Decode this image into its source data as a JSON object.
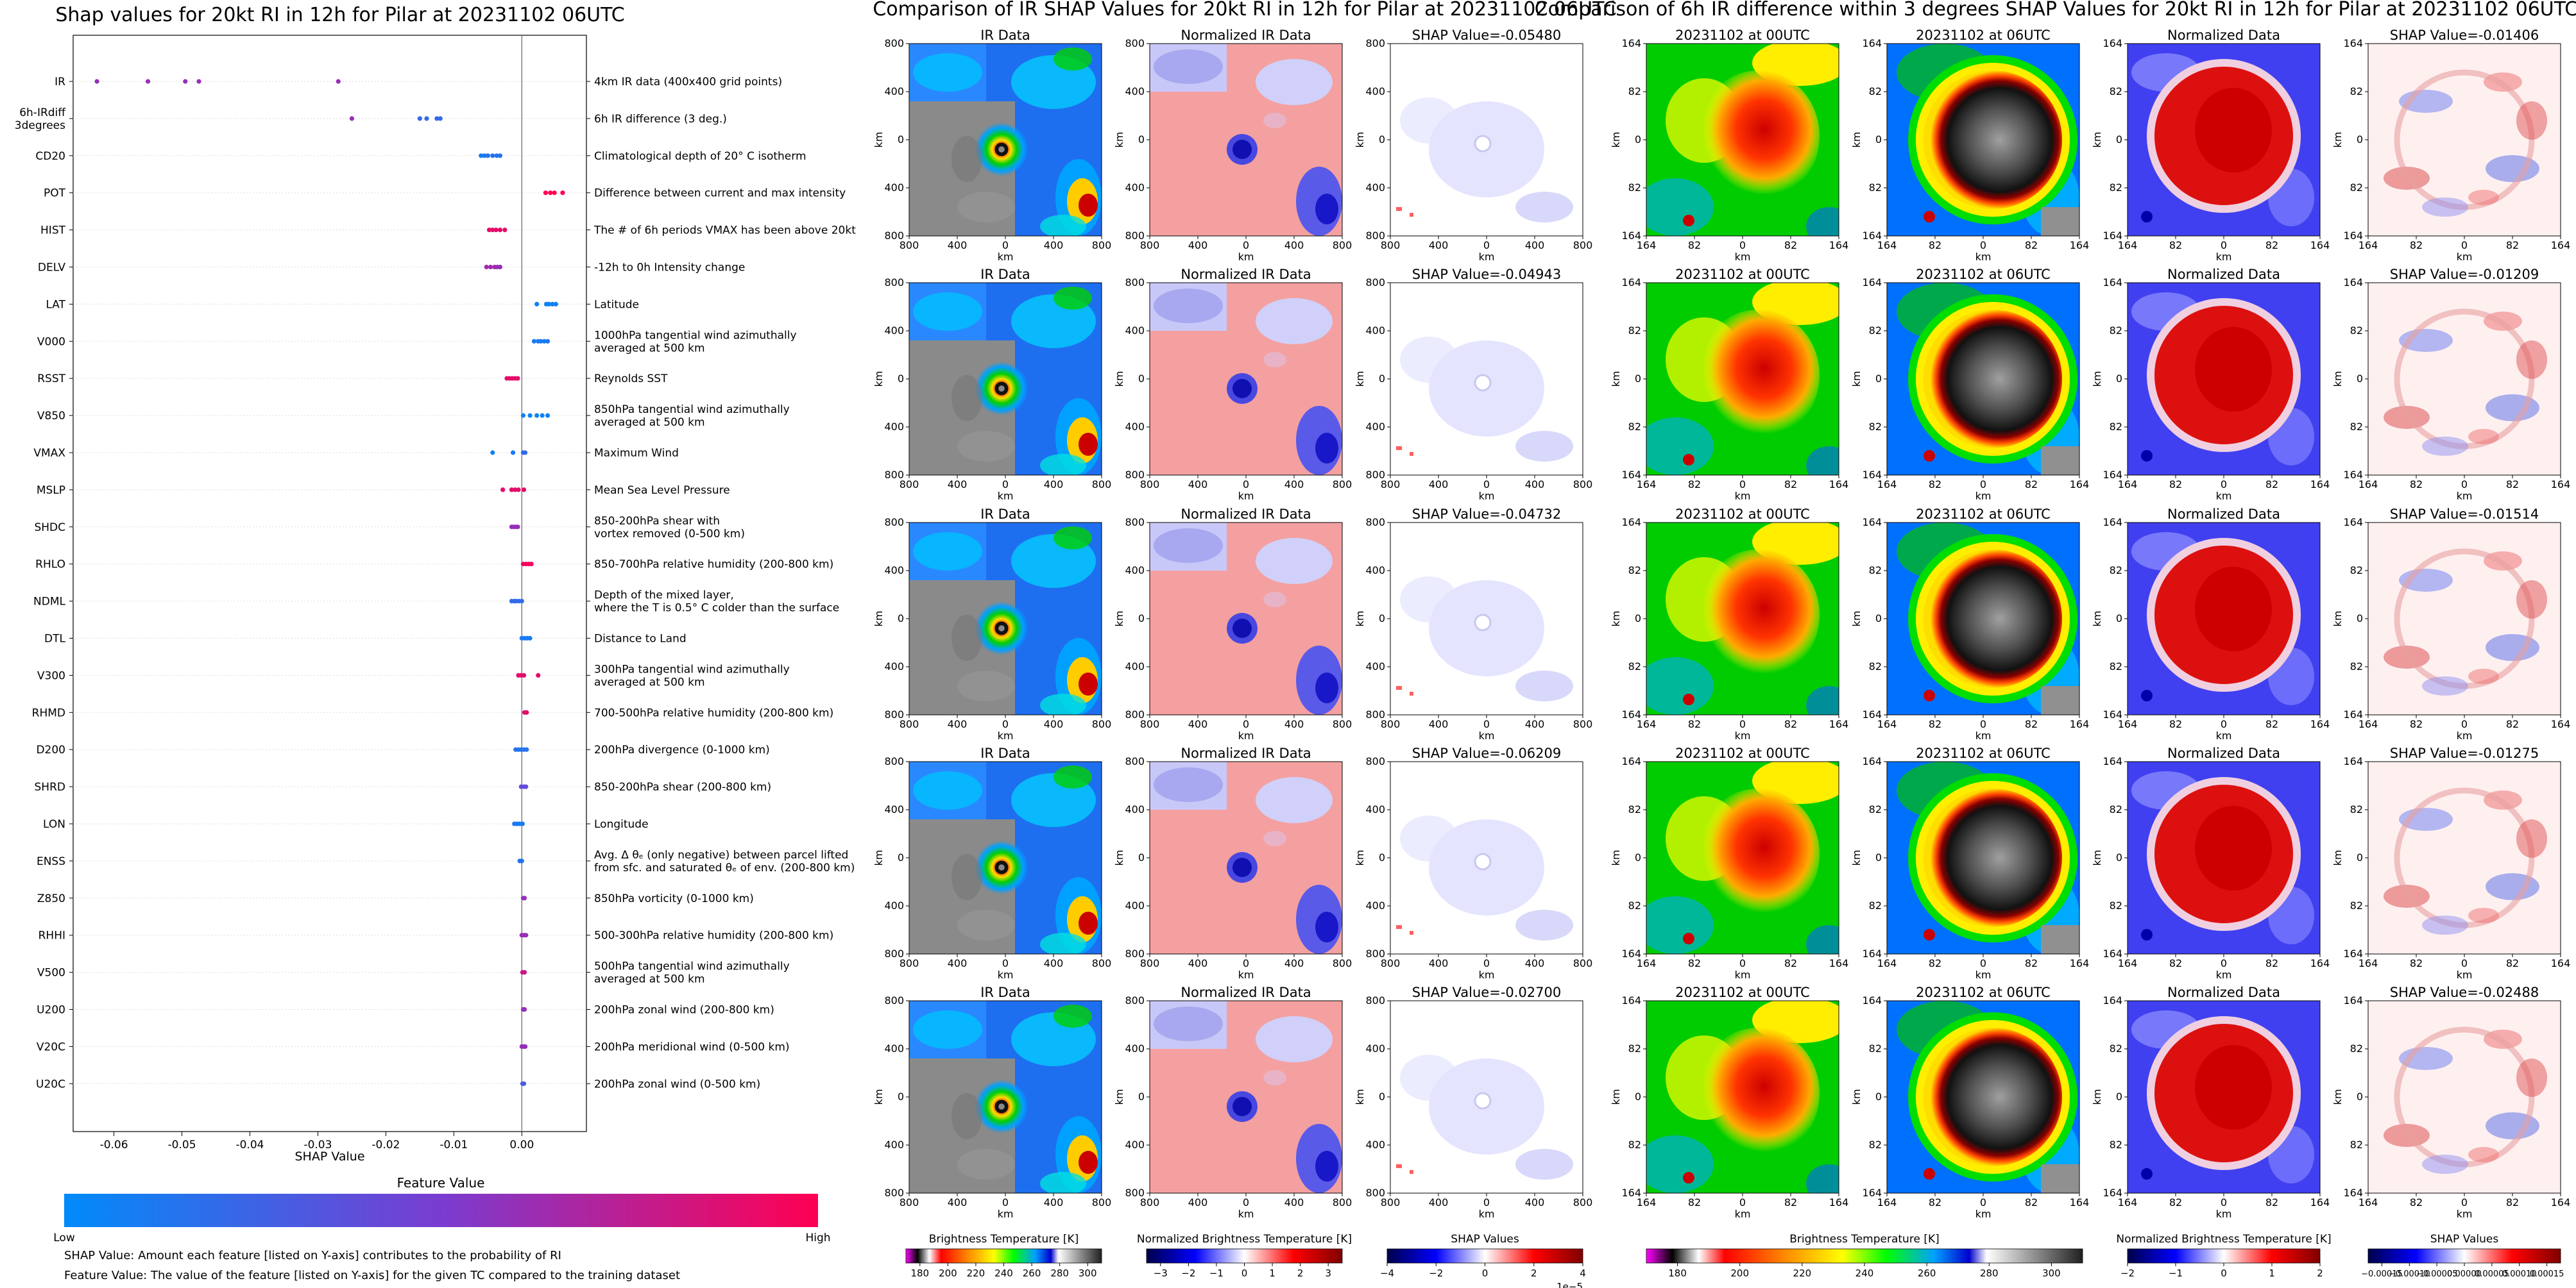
{
  "titles": {
    "left": "Shap values for 20kt RI in 12h for Pilar at 20231102 06UTC",
    "middle": "Comparison of IR SHAP Values for 20kt RI in 12h for Pilar at 20231102 06UTC",
    "right": "Comparison of 6h IR difference within 3 degrees SHAP Values for 20kt RI in 12h for Pilar at 20231102 06UTC"
  },
  "beeswarm": {
    "xlabel": "SHAP Value",
    "xticks": [
      "-0.06",
      "-0.05",
      "-0.04",
      "-0.03",
      "-0.02",
      "-0.01",
      "0.00"
    ],
    "xlim": [
      -0.066,
      0.0095
    ],
    "colorbar": {
      "title": "Feature Value",
      "low": "Low",
      "high": "High"
    },
    "notes": [
      "SHAP Value: Amount each feature [listed on Y-axis] contributes to the probability of RI",
      "Feature Value: The value of the feature [listed on Y-axis] for the given TC compared to the training dataset"
    ]
  },
  "chart_data": [
    {
      "type": "scatter",
      "title": "Shap values for 20kt RI in 12h for Pilar at 20231102 06UTC",
      "xlabel": "SHAP Value",
      "xlim": [
        -0.066,
        0.0095
      ],
      "features": [
        {
          "name": "IR",
          "desc": "4km IR data (400x400 grid points)",
          "points": [
            [
              -0.0625,
              0.6
            ],
            [
              -0.055,
              0.6
            ],
            [
              -0.0495,
              0.6
            ],
            [
              -0.0475,
              0.6
            ],
            [
              -0.027,
              0.6
            ]
          ]
        },
        {
          "name": "6h-IRdiff\n3degrees",
          "desc": "6h IR difference (3 deg.)",
          "points": [
            [
              -0.025,
              0.6
            ],
            [
              -0.015,
              0.2
            ],
            [
              -0.014,
              0.2
            ],
            [
              -0.0125,
              0.2
            ],
            [
              -0.012,
              0.2
            ]
          ]
        },
        {
          "name": "CD20",
          "desc": "Climatological depth of 20° C isotherm",
          "points": [
            [
              -0.006,
              0.1
            ],
            [
              -0.0055,
              0.1
            ],
            [
              -0.005,
              0.15
            ],
            [
              -0.0043,
              0.15
            ],
            [
              -0.0037,
              0.15
            ],
            [
              -0.0032,
              0.15
            ]
          ]
        },
        {
          "name": "POT",
          "desc": "Difference between current and max intensity",
          "points": [
            [
              0.0035,
              1
            ],
            [
              0.0042,
              1
            ],
            [
              0.0048,
              1
            ],
            [
              0.006,
              1
            ]
          ]
        },
        {
          "name": "HIST",
          "desc": "The # of 6h periods VMAX has been above 20kt",
          "points": [
            [
              -0.0048,
              0.9
            ],
            [
              -0.0043,
              0.9
            ],
            [
              -0.0038,
              0.9
            ],
            [
              -0.0032,
              0.9
            ],
            [
              -0.0025,
              0.9
            ]
          ]
        },
        {
          "name": "DELV",
          "desc": "-12h to 0h Intensity change",
          "points": [
            [
              -0.0052,
              0.65
            ],
            [
              -0.0046,
              0.65
            ],
            [
              -0.004,
              0.65
            ],
            [
              -0.0036,
              0.6
            ],
            [
              -0.0032,
              0.6
            ]
          ]
        },
        {
          "name": "LAT",
          "desc": "Latitude",
          "points": [
            [
              0.0022,
              0.05
            ],
            [
              0.0036,
              0.05
            ],
            [
              0.004,
              0.05
            ],
            [
              0.0045,
              0.05
            ],
            [
              0.005,
              0.05
            ]
          ]
        },
        {
          "name": "V000",
          "desc": "1000hPa tangential wind azimuthally\naveraged at 500 km",
          "points": [
            [
              0.0018,
              0.1
            ],
            [
              0.0024,
              0.1
            ],
            [
              0.0028,
              0.1
            ],
            [
              0.0033,
              0.1
            ],
            [
              0.0038,
              0.1
            ]
          ]
        },
        {
          "name": "RSST",
          "desc": "Reynolds SST",
          "points": [
            [
              -0.0022,
              0.9
            ],
            [
              -0.0018,
              0.9
            ],
            [
              -0.0014,
              0.9
            ],
            [
              -0.001,
              0.9
            ],
            [
              -0.0006,
              0.9
            ]
          ]
        },
        {
          "name": "V850",
          "desc": "850hPa tangential wind azimuthally\naveraged at 500 km",
          "points": [
            [
              0.0002,
              0.05
            ],
            [
              0.0012,
              0.05
            ],
            [
              0.0022,
              0.05
            ],
            [
              0.003,
              0.05
            ],
            [
              0.0038,
              0.05
            ]
          ]
        },
        {
          "name": "VMAX",
          "desc": "Maximum Wind",
          "points": [
            [
              -0.0043,
              0.05
            ],
            [
              -0.0013,
              0.1
            ],
            [
              0.0002,
              0.2
            ],
            [
              0.0005,
              0.2
            ]
          ]
        },
        {
          "name": "MSLP",
          "desc": "Mean Sea Level Pressure",
          "points": [
            [
              -0.0028,
              0.9
            ],
            [
              -0.0015,
              0.9
            ],
            [
              -0.001,
              0.9
            ],
            [
              -0.0005,
              0.9
            ],
            [
              0.0003,
              0.9
            ]
          ]
        },
        {
          "name": "SHDC",
          "desc": "850-200hPa shear with\nvortex removed (0-500 km)",
          "points": [
            [
              -0.0015,
              0.6
            ],
            [
              -0.0012,
              0.6
            ],
            [
              -0.0009,
              0.6
            ],
            [
              -0.0006,
              0.6
            ]
          ]
        },
        {
          "name": "RHLO",
          "desc": "850-700hPa relative humidity (200-800 km)",
          "points": [
            [
              0.0002,
              0.95
            ],
            [
              0.0006,
              0.95
            ],
            [
              0.001,
              0.95
            ],
            [
              0.0014,
              0.95
            ]
          ]
        },
        {
          "name": "NDML",
          "desc": "Depth of the mixed layer,\nwhere the T is 0.5° C colder than the surface",
          "points": [
            [
              -0.0015,
              0.2
            ],
            [
              -0.0011,
              0.2
            ],
            [
              -0.0008,
              0.2
            ],
            [
              -0.0004,
              0.2
            ],
            [
              0.0,
              0.2
            ]
          ]
        },
        {
          "name": "DTL",
          "desc": "Distance to Land",
          "points": [
            [
              0.0,
              0.1
            ],
            [
              0.0004,
              0.1
            ],
            [
              0.0008,
              0.1
            ],
            [
              0.0012,
              0.1
            ]
          ]
        },
        {
          "name": "V300",
          "desc": "300hPa tangential wind azimuthally\naveraged at 500 km",
          "points": [
            [
              -0.0005,
              0.9
            ],
            [
              -0.0001,
              0.9
            ],
            [
              0.0003,
              0.9
            ],
            [
              0.0024,
              0.9
            ]
          ]
        },
        {
          "name": "RHMD",
          "desc": "700-500hPa relative humidity (200-800 km)",
          "points": [
            [
              0.0004,
              0.9
            ],
            [
              0.0007,
              0.9
            ]
          ]
        },
        {
          "name": "D200",
          "desc": "200hPa divergence (0-1000 km)",
          "points": [
            [
              -0.0009,
              0.15
            ],
            [
              -0.0005,
              0.15
            ],
            [
              -0.0001,
              0.15
            ],
            [
              0.0003,
              0.15
            ],
            [
              0.0007,
              0.15
            ]
          ]
        },
        {
          "name": "SHRD",
          "desc": "850-200hPa shear (200-800 km)",
          "points": [
            [
              -0.0001,
              0.4
            ],
            [
              0.0003,
              0.4
            ],
            [
              0.0006,
              0.4
            ]
          ]
        },
        {
          "name": "LON",
          "desc": "Longitude",
          "points": [
            [
              -0.0011,
              0.1
            ],
            [
              -0.0007,
              0.1
            ],
            [
              -0.0003,
              0.1
            ],
            [
              0.0001,
              0.1
            ]
          ]
        },
        {
          "name": "ENSS",
          "desc": "Avg. Δ θₑ (only negative) between parcel lifted\nfrom sfc. and saturated θₑ of env. (200-800 km)",
          "points": [
            [
              -0.0003,
              0.15
            ],
            [
              0.0,
              0.15
            ]
          ]
        },
        {
          "name": "Z850",
          "desc": "850hPa vorticity (0-1000 km)",
          "points": [
            [
              0.0002,
              0.6
            ],
            [
              0.0004,
              0.6
            ]
          ]
        },
        {
          "name": "RHHI",
          "desc": "500-300hPa relative humidity (200-800 km)",
          "points": [
            [
              0.0,
              0.6
            ],
            [
              0.0003,
              0.6
            ],
            [
              0.0006,
              0.6
            ]
          ]
        },
        {
          "name": "V500",
          "desc": "500hPa tangential wind azimuthally\naveraged at 500 km",
          "points": [
            [
              0.0001,
              0.8
            ],
            [
              0.0004,
              0.8
            ]
          ]
        },
        {
          "name": "U200",
          "desc": "200hPa zonal wind (200-800 km)",
          "points": [
            [
              0.0002,
              0.6
            ],
            [
              0.0004,
              0.6
            ]
          ]
        },
        {
          "name": "V20C",
          "desc": "200hPa meridional wind (0-500 km)",
          "points": [
            [
              0.0,
              0.6
            ],
            [
              0.0003,
              0.6
            ],
            [
              0.0005,
              0.6
            ]
          ]
        },
        {
          "name": "U20C",
          "desc": "200hPa zonal wind (0-500 km)",
          "points": [
            [
              0.0001,
              0.3
            ],
            [
              0.0003,
              0.3
            ]
          ]
        }
      ]
    },
    {
      "type": "heatmap",
      "title": "Comparison of IR SHAP Values for 20kt RI in 12h for Pilar at 20231102 06UTC",
      "column_titles": [
        "IR Data",
        "Normalized IR Data",
        "SHAP Value"
      ],
      "shap_values": [
        "-0.05480",
        "-0.04943",
        "-0.04732",
        "-0.06209",
        "-0.02700"
      ],
      "xlabel": "km",
      "ylabel": "km",
      "xticks": [
        "800",
        "400",
        "0",
        "400",
        "800"
      ],
      "yticks": [
        "800",
        "400",
        "0",
        "400",
        "800"
      ]
    },
    {
      "type": "heatmap",
      "title": "Comparison of 6h IR difference within 3 degrees SHAP Values for 20kt RI in 12h for Pilar at 20231102 06UTC",
      "column_titles": [
        "20231102 at 00UTC",
        "20231102 at 06UTC",
        "Normalized Data",
        "SHAP Value"
      ],
      "shap_values": [
        "-0.01406",
        "-0.01209",
        "-0.01514",
        "-0.01275",
        "-0.02488"
      ],
      "xlabel": "km",
      "ylabel": "km",
      "xticks": [
        "164",
        "82",
        "0",
        "82",
        "164"
      ],
      "yticks": [
        "164",
        "82",
        "0",
        "82",
        "164"
      ]
    }
  ],
  "colorbars": {
    "bt": {
      "label": "Brightness Temperature [K]",
      "ticks": [
        "180",
        "200",
        "220",
        "240",
        "260",
        "280",
        "300"
      ]
    },
    "norm": {
      "label": "Normalized Brightness Temperature [K]",
      "ticks": [
        "−3",
        "−2",
        "−1",
        "0",
        "1",
        "2",
        "3"
      ]
    },
    "shap": {
      "label": "SHAP Values",
      "ticks": [
        "−4",
        "−2",
        "0",
        "2",
        "4"
      ],
      "exponent": "1e−5"
    },
    "bt2": {
      "label": "Brightness Temperature [K]",
      "ticks": [
        "180",
        "200",
        "220",
        "240",
        "260",
        "280",
        "300"
      ]
    },
    "norm2": {
      "label": "Normalized Brightness Temperature [K]",
      "ticks": [
        "−2",
        "−1",
        "0",
        "1",
        "2"
      ]
    },
    "shap2": {
      "label": "SHAP Values",
      "ticks": [
        "−0.00015",
        "−0.00010",
        "−0.00005",
        "0.00000",
        "0.00005",
        "0.00010",
        "0.00015"
      ]
    }
  },
  "colors": {
    "shap_low": "#008bfa",
    "shap_mid": "#7a3cd0",
    "shap_high": "#ff0052"
  }
}
